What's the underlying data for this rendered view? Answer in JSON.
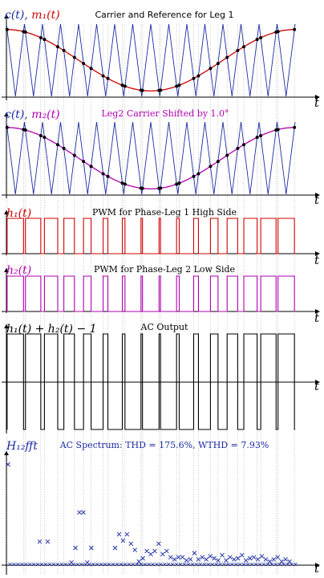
{
  "panels": [
    {
      "id": "p1",
      "title": "Carrier and Reference for Leg 1",
      "ylabel_parts": [
        {
          "t": "c(t), ",
          "c": "#1a2aa0"
        },
        {
          "t": "m₁(t)",
          "c": "#d00000"
        }
      ],
      "xlabel": "t"
    },
    {
      "id": "p2",
      "title": "Leg2 Carrier Shifted by 1.0°",
      "ylabel_parts": [
        {
          "t": "c(t), ",
          "c": "#1a2aa0"
        },
        {
          "t": "m₂(t)",
          "c": "#b000b0"
        }
      ],
      "xlabel": "t"
    },
    {
      "id": "p3",
      "title": "PWM for Phase-Leg 1 High Side",
      "ylabel_parts": [
        {
          "t": "h₁(t)",
          "c": "#d00000"
        }
      ],
      "xlabel": "t"
    },
    {
      "id": "p4",
      "title": "PWM for Phase-Leg 2 Low Side",
      "ylabel_parts": [
        {
          "t": "h₂(t)",
          "c": "#b000b0"
        }
      ],
      "xlabel": "t"
    },
    {
      "id": "p5",
      "title": "AC Output",
      "ylabel_parts": [
        {
          "t": "h₁(t) + h₂(t) − 1",
          "c": "#000000"
        }
      ],
      "xlabel": "t"
    },
    {
      "id": "p6",
      "title": "AC Spectrum: THD = 175.6%, WTHD = 7.93%",
      "ylabel_parts": [
        {
          "t": "H₁₂fft",
          "c": "#1a2aa0"
        }
      ],
      "xlabel": "t"
    }
  ],
  "chart_data": [
    {
      "type": "line",
      "title": "Carrier and Reference for Leg 1",
      "xlabel": "t",
      "ylabel": "c(t), m1(t)",
      "carrier_periods": 16,
      "xlim": [
        0,
        1
      ],
      "ylim": [
        -1,
        1
      ],
      "series": [
        {
          "name": "c(t)",
          "shape": "triangle",
          "color": "#1a2aa0"
        },
        {
          "name": "m1(t)",
          "shape": "cosine",
          "amplitude": 0.85,
          "color": "#d00000"
        }
      ]
    },
    {
      "type": "line",
      "title": "Leg2 Carrier Shifted by 1.0°",
      "xlabel": "t",
      "ylabel": "c(t), m2(t)",
      "carrier_periods": 16,
      "xlim": [
        0,
        1
      ],
      "ylim": [
        -1,
        1
      ],
      "series": [
        {
          "name": "c(t)",
          "shape": "triangle",
          "color": "#1a2aa0"
        },
        {
          "name": "m2(t)",
          "shape": "cosine",
          "amplitude": 0.85,
          "color": "#b000b0"
        }
      ]
    },
    {
      "type": "line",
      "title": "PWM for Phase-Leg 1 High Side",
      "ylabel": "h1(t)",
      "xlabel": "t",
      "ylim": [
        0,
        1
      ],
      "series": [
        {
          "name": "h1(t)",
          "color": "#d00000"
        }
      ]
    },
    {
      "type": "line",
      "title": "PWM for Phase-Leg 2 Low Side",
      "ylabel": "h2(t)",
      "xlabel": "t",
      "ylim": [
        0,
        1
      ],
      "series": [
        {
          "name": "h2(t)",
          "color": "#b000b0"
        }
      ]
    },
    {
      "type": "line",
      "title": "AC Output",
      "ylabel": "h1(t) + h2(t) - 1",
      "xlabel": "t",
      "ylim": [
        -1,
        1
      ],
      "series": [
        {
          "name": "h1(t) + h2(t) - 1",
          "color": "#000000"
        }
      ]
    },
    {
      "type": "scatter",
      "title": "AC Spectrum: THD = 175.6%, WTHD = 7.93%",
      "ylabel": "H12fft",
      "xlabel": "t",
      "ylim": [
        0,
        1
      ],
      "series": [
        {
          "name": "H12fft",
          "color": "#1a2aa0",
          "points": [
            [
              0,
              0.95
            ],
            [
              8,
              0.21
            ],
            [
              10,
              0.21
            ],
            [
              16,
              0.01
            ],
            [
              17,
              0.15
            ],
            [
              18,
              0.49
            ],
            [
              19,
              0.49
            ],
            [
              20,
              0.01
            ],
            [
              21,
              0.15
            ],
            [
              27,
              0.15
            ],
            [
              28,
              0.28
            ],
            [
              29,
              0.22
            ],
            [
              30,
              0.28
            ],
            [
              31,
              0.19
            ],
            [
              32,
              0.13
            ],
            [
              33,
              0.02
            ],
            [
              34,
              0.05
            ],
            [
              35,
              0.12
            ],
            [
              36,
              0.09
            ],
            [
              37,
              0.12
            ],
            [
              38,
              0.19
            ],
            [
              39,
              0.09
            ],
            [
              40,
              0.12
            ],
            [
              41,
              0.06
            ],
            [
              42,
              0.04
            ],
            [
              43,
              0.06
            ],
            [
              44,
              0.06
            ],
            [
              45,
              0.03
            ],
            [
              46,
              0.04
            ],
            [
              47,
              0.1
            ],
            [
              48,
              0.04
            ],
            [
              49,
              0.06
            ],
            [
              50,
              0.04
            ],
            [
              51,
              0.07
            ],
            [
              52,
              0.05
            ],
            [
              53,
              0.03
            ],
            [
              54,
              0.08
            ],
            [
              55,
              0.03
            ],
            [
              56,
              0.06
            ],
            [
              57,
              0.04
            ],
            [
              58,
              0.05
            ],
            [
              59,
              0.08
            ],
            [
              60,
              0.03
            ],
            [
              61,
              0.05
            ],
            [
              62,
              0.06
            ],
            [
              63,
              0.04
            ],
            [
              64,
              0.07
            ],
            [
              65,
              0.04
            ],
            [
              66,
              0.02
            ],
            [
              67,
              0.04
            ],
            [
              68,
              0.06
            ],
            [
              69,
              0.02
            ],
            [
              70,
              0.04
            ],
            [
              71,
              0.02
            ]
          ]
        }
      ]
    }
  ]
}
